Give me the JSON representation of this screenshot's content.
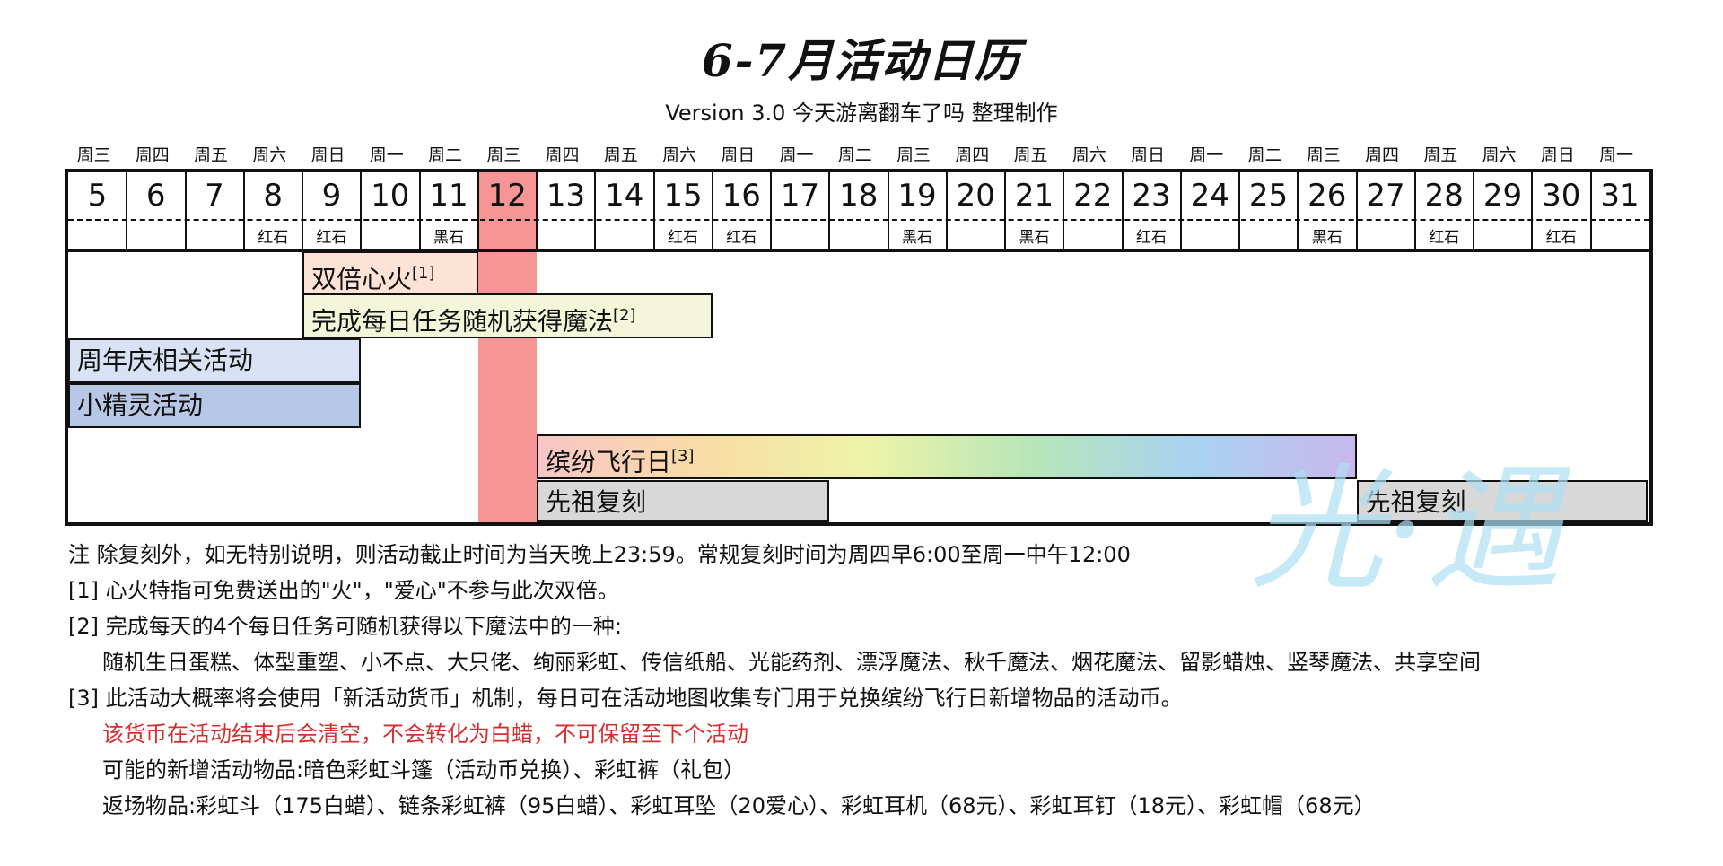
{
  "title": "6-7月活动日历",
  "subtitle": "Version 3.0   今天游离翻车了吗 整理制作",
  "calendar": {
    "days": [
      {
        "weekday": "周三",
        "date": "5",
        "tag": ""
      },
      {
        "weekday": "周四",
        "date": "6",
        "tag": ""
      },
      {
        "weekday": "周五",
        "date": "7",
        "tag": ""
      },
      {
        "weekday": "周六",
        "date": "8",
        "tag": "红石"
      },
      {
        "weekday": "周日",
        "date": "9",
        "tag": "红石"
      },
      {
        "weekday": "周一",
        "date": "10",
        "tag": ""
      },
      {
        "weekday": "周二",
        "date": "11",
        "tag": "黑石"
      },
      {
        "weekday": "周三",
        "date": "12",
        "tag": ""
      },
      {
        "weekday": "周四",
        "date": "13",
        "tag": ""
      },
      {
        "weekday": "周五",
        "date": "14",
        "tag": ""
      },
      {
        "weekday": "周六",
        "date": "15",
        "tag": "红石"
      },
      {
        "weekday": "周日",
        "date": "16",
        "tag": "红石"
      },
      {
        "weekday": "周一",
        "date": "17",
        "tag": ""
      },
      {
        "weekday": "周二",
        "date": "18",
        "tag": ""
      },
      {
        "weekday": "周三",
        "date": "19",
        "tag": "黑石"
      },
      {
        "weekday": "周四",
        "date": "20",
        "tag": ""
      },
      {
        "weekday": "周五",
        "date": "21",
        "tag": "黑石"
      },
      {
        "weekday": "周六",
        "date": "22",
        "tag": ""
      },
      {
        "weekday": "周日",
        "date": "23",
        "tag": "红石"
      },
      {
        "weekday": "周一",
        "date": "24",
        "tag": ""
      },
      {
        "weekday": "周二",
        "date": "25",
        "tag": ""
      },
      {
        "weekday": "周三",
        "date": "26",
        "tag": "黑石"
      },
      {
        "weekday": "周四",
        "date": "27",
        "tag": ""
      },
      {
        "weekday": "周五",
        "date": "28",
        "tag": "红石"
      },
      {
        "weekday": "周六",
        "date": "29",
        "tag": ""
      },
      {
        "weekday": "周日",
        "date": "30",
        "tag": "红石"
      },
      {
        "weekday": "周一",
        "date": "31",
        "tag": ""
      }
    ],
    "highlight_date": "12",
    "highlight_color": "#f58a8a",
    "events": [
      {
        "label": "双倍心火",
        "note": "[1]",
        "start_date": "9",
        "end_date": "11",
        "color": "#fde3d6"
      },
      {
        "label": "完成每日任务随机获得魔法",
        "note": "[2]",
        "start_date": "9",
        "end_date": "15",
        "color": "#f4f6d9"
      },
      {
        "label": "周年庆相关活动",
        "note": "",
        "start_date": "5",
        "end_date": "9",
        "color": "#d9e2f4"
      },
      {
        "label": "小精灵活动",
        "note": "",
        "start_date": "5",
        "end_date": "9",
        "color": "#b7c8e6"
      },
      {
        "label": "缤纷飞行日",
        "note": "[3]",
        "start_date": "13",
        "end_date": "26",
        "color": "rainbow"
      },
      {
        "label": "先祖复刻",
        "note": "",
        "start_date": "13",
        "end_date": "17",
        "color": "#d8d8d8"
      },
      {
        "label": "先祖复刻",
        "note": "",
        "start_date": "27",
        "end_date": "31",
        "color": "#d8d8d8"
      }
    ]
  },
  "watermark": {
    "text": "光·遇",
    "color": "#aee0f4"
  },
  "notes": {
    "n0": "注 除复刻外，如无特别说明，则活动截止时间为当天晚上23:59。常规复刻时间为周四早6:00至周一中午12:00",
    "n1": "[1] 心火特指可免费送出的\"火\"，\"爱心\"不参与此次双倍。",
    "n2": "[2] 完成每天的4个每日任务可随机获得以下魔法中的一种:",
    "n2b": "随机生日蛋糕、体型重塑、小不点、大只佬、绚丽彩虹、传信纸船、光能药剂、漂浮魔法、秋千魔法、烟花魔法、留影蜡烛、竖琴魔法、共享空间",
    "n3": "[3] 此活动大概率将会使用「新活动货币」机制，每日可在活动地图收集专门用于兑换缤纷飞行日新增物品的活动币。",
    "n3a": "该货币在活动结束后会清空，不会转化为白蜡，不可保留至下个活动",
    "n3b": "可能的新增活动物品:暗色彩虹斗篷（活动币兑换）、彩虹裤（礼包）",
    "n3c": "返场物品:彩虹斗（175白蜡）、链条彩虹裤（95白蜡）、彩虹耳坠（20爱心）、彩虹耳机（68元）、彩虹耳钉（18元）、彩虹帽（68元）"
  }
}
